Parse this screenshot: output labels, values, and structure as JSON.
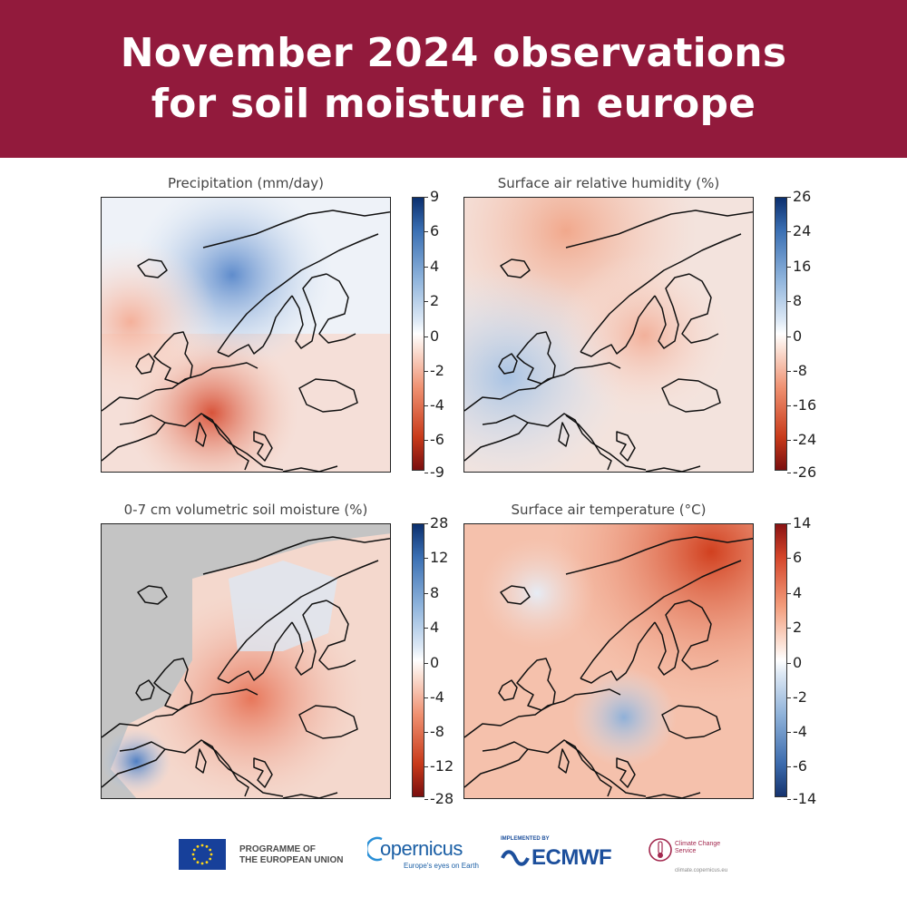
{
  "header": {
    "title_line1": "November 2024 observations",
    "title_line2": "for soil moisture in europe",
    "background_color": "#921a3c"
  },
  "panels": [
    {
      "title": "Precipitation (mm/day)",
      "colormap": "diverging red-white-blue",
      "colorbar_ticks": [
        "9",
        "6",
        "4",
        "2",
        "0",
        "-2",
        "-4",
        "-6",
        "-9"
      ]
    },
    {
      "title": "Surface air relative humidity (%)",
      "colormap": "diverging red-white-blue",
      "colorbar_ticks": [
        "26",
        "24",
        "16",
        "8",
        "0",
        "-8",
        "-16",
        "-24",
        "-26"
      ]
    },
    {
      "title": "0-7 cm volumetric soil moisture (%)",
      "colormap": "diverging red-white-blue",
      "colorbar_ticks": [
        "28",
        "12",
        "8",
        "4",
        "0",
        "-4",
        "-8",
        "-12",
        "-28"
      ]
    },
    {
      "title": "Surface air temperature (°C)",
      "colormap": "diverging blue-white-red",
      "colorbar_ticks": [
        "14",
        "6",
        "4",
        "2",
        "0",
        "-2",
        "-4",
        "-6",
        "-14"
      ]
    }
  ],
  "footer": {
    "eu_line1": "PROGRAMME OF",
    "eu_line2": "THE EUROPEAN UNION",
    "copernicus": "opernicus",
    "copernicus_tagline": "Europe's eyes on Earth",
    "ecmwf_implemented": "IMPLEMENTED BY",
    "ecmwf": "ECMWF",
    "c3s_name": "Climate Change Service",
    "c3s_url": "climate.copernicus.eu"
  }
}
